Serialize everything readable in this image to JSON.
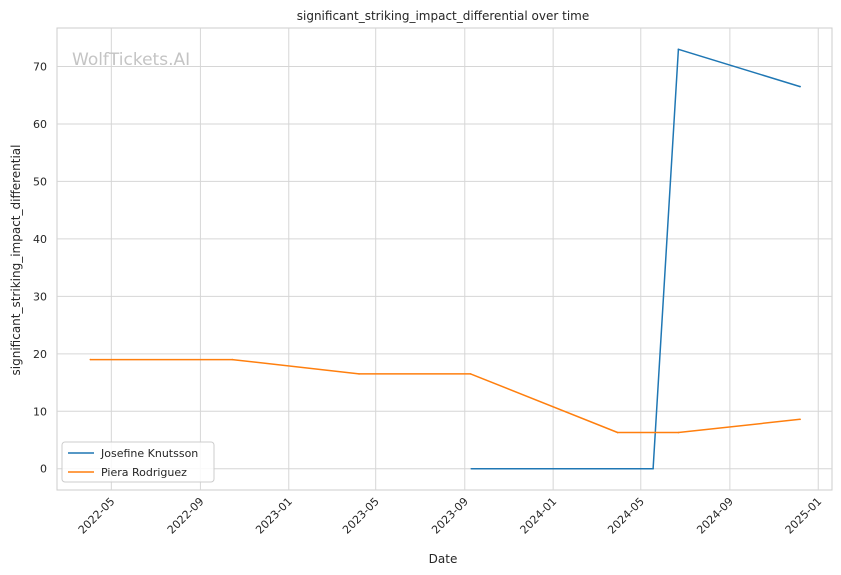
{
  "chart_data": {
    "type": "line",
    "title": "significant_striking_impact_differential over time",
    "xlabel": "Date",
    "ylabel": "significant_striking_impact_differential",
    "watermark": "WolfTickets.AI",
    "x_ticks": [
      "2022-05",
      "2022-09",
      "2023-01",
      "2023-05",
      "2023-09",
      "2024-01",
      "2024-05",
      "2024-09",
      "2025-01"
    ],
    "y_ticks": [
      0,
      10,
      20,
      30,
      40,
      50,
      60,
      70
    ],
    "xlim": [
      "2022-02-15",
      "2025-01-20"
    ],
    "ylim": [
      -3.7,
      76.7
    ],
    "grid": true,
    "legend_position": "lower-left",
    "series": [
      {
        "name": "Josefine Knutsson",
        "color": "#1f77b4",
        "points": [
          {
            "x": "2023-09-10",
            "y": 0
          },
          {
            "x": "2024-05-18",
            "y": 0
          },
          {
            "x": "2024-06-22",
            "y": 73
          },
          {
            "x": "2024-12-07",
            "y": 66.5
          }
        ]
      },
      {
        "name": "Piera Rodriguez",
        "color": "#ff7f0e",
        "points": [
          {
            "x": "2022-04-02",
            "y": 19
          },
          {
            "x": "2022-10-15",
            "y": 19
          },
          {
            "x": "2023-04-08",
            "y": 16.5
          },
          {
            "x": "2023-09-09",
            "y": 16.5
          },
          {
            "x": "2024-03-30",
            "y": 6.3
          },
          {
            "x": "2024-06-22",
            "y": 6.3
          },
          {
            "x": "2024-12-07",
            "y": 8.6
          }
        ]
      }
    ]
  }
}
